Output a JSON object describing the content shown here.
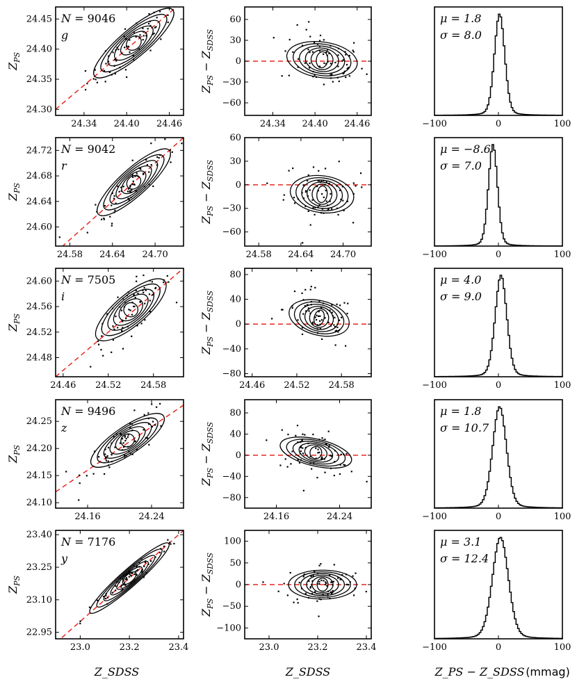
{
  "figure": {
    "x_label_left": "Z_SDSS",
    "x_label_mid": "Z_SDSS",
    "x_label_right": "Z_PS − Z_SDSS",
    "x_label_right_unit": "(mmag)",
    "y_label_left": "Z_PS",
    "y_label_mid": "Z_PS − Z_SDSS"
  },
  "chart_data": [
    {
      "band": "g",
      "N": "9046",
      "mu": "1.8",
      "sigma": "8.0",
      "left": {
        "type": "scatter",
        "xlim": [
          24.3,
          24.48
        ],
        "ylim": [
          24.29,
          24.47
        ],
        "xticks": [
          "24.34",
          "24.40",
          "24.46"
        ],
        "yticks": [
          "24.30",
          "24.35",
          "24.40",
          "24.45"
        ],
        "center": [
          24.41,
          24.41
        ],
        "slope": 1.0,
        "spread": 0.055,
        "width": 0.011
      },
      "mid": {
        "type": "scatter",
        "xlim": [
          24.3,
          24.48
        ],
        "ylim": [
          -78,
          78
        ],
        "xticks": [
          "24.34",
          "24.40",
          "24.46"
        ],
        "yticks": [
          "60",
          "30",
          "0",
          "−30",
          "−60"
        ],
        "center": [
          24.41,
          2
        ],
        "slope": -140,
        "spread": 0.05,
        "width": 13
      },
      "hist": {
        "type": "histogram",
        "xlim": [
          -100,
          100
        ],
        "xticks": [
          "−100",
          "0",
          "100"
        ],
        "mu": 1.8,
        "sigma": 8.0
      }
    },
    {
      "band": "r",
      "N": "9042",
      "mu": "−8.6",
      "sigma": "7.0",
      "left": {
        "type": "scatter",
        "xlim": [
          24.56,
          24.74
        ],
        "ylim": [
          24.57,
          24.74
        ],
        "xticks": [
          "24.58",
          "24.64",
          "24.70"
        ],
        "yticks": [
          "24.60",
          "24.64",
          "24.68",
          "24.72"
        ],
        "center": [
          24.67,
          24.67
        ],
        "slope": 1.0,
        "spread": 0.05,
        "width": 0.01
      },
      "mid": {
        "type": "scatter",
        "xlim": [
          24.56,
          24.74
        ],
        "ylim": [
          -78,
          60
        ],
        "xticks": [
          "24.58",
          "24.64",
          "24.70"
        ],
        "yticks": [
          "60",
          "30",
          "0",
          "−30",
          "−60"
        ],
        "center": [
          24.67,
          -12
        ],
        "slope": -120,
        "spread": 0.045,
        "width": 12
      },
      "hist": {
        "type": "histogram",
        "xlim": [
          -100,
          100
        ],
        "xticks": [
          "−100",
          "0",
          "100"
        ],
        "mu": -8.6,
        "sigma": 7.0
      }
    },
    {
      "band": "i",
      "N": "7505",
      "mu": "4.0",
      "sigma": "9.0",
      "left": {
        "type": "scatter",
        "xlim": [
          24.45,
          24.62
        ],
        "ylim": [
          24.45,
          24.62
        ],
        "xticks": [
          "24.46",
          "24.52",
          "24.58"
        ],
        "yticks": [
          "24.48",
          "24.52",
          "24.56",
          "24.60"
        ],
        "center": [
          24.55,
          24.555
        ],
        "slope": 1.0,
        "spread": 0.045,
        "width": 0.012
      },
      "mid": {
        "type": "scatter",
        "xlim": [
          24.45,
          24.62
        ],
        "ylim": [
          -85,
          90
        ],
        "xticks": [
          "24.46",
          "24.52",
          "24.58"
        ],
        "yticks": [
          "80",
          "40",
          "0",
          "−40",
          "−80"
        ],
        "center": [
          24.55,
          10
        ],
        "slope": -300,
        "spread": 0.04,
        "width": 14
      },
      "hist": {
        "type": "histogram",
        "xlim": [
          -100,
          100
        ],
        "xticks": [
          "−100",
          "0",
          "100"
        ],
        "mu": 4.0,
        "sigma": 9.0
      }
    },
    {
      "band": "z",
      "N": "9496",
      "mu": "1.8",
      "sigma": "10.7",
      "left": {
        "type": "scatter",
        "xlim": [
          24.12,
          24.28
        ],
        "ylim": [
          24.09,
          24.29
        ],
        "xticks": [
          "24.16",
          "24.24"
        ],
        "yticks": [
          "24.10",
          "24.15",
          "24.20",
          "24.25"
        ],
        "center": [
          24.21,
          24.215
        ],
        "slope": 1.0,
        "spread": 0.045,
        "width": 0.012
      },
      "mid": {
        "type": "scatter",
        "xlim": [
          24.12,
          24.28
        ],
        "ylim": [
          -100,
          105
        ],
        "xticks": [
          "24.16",
          "24.24"
        ],
        "yticks": [
          "80",
          "40",
          "0",
          "−40",
          "−80"
        ],
        "center": [
          24.21,
          5
        ],
        "slope": -350,
        "spread": 0.045,
        "width": 12
      },
      "hist": {
        "type": "histogram",
        "xlim": [
          -100,
          100
        ],
        "xticks": [
          "−100",
          "0",
          "100"
        ],
        "mu": 1.8,
        "sigma": 10.7
      }
    },
    {
      "band": "y",
      "N": "7176",
      "mu": "3.1",
      "sigma": "12.4",
      "left": {
        "type": "scatter",
        "xlim": [
          22.9,
          23.42
        ],
        "ylim": [
          22.92,
          23.42
        ],
        "xticks": [
          "23.0",
          "23.2",
          "23.4"
        ],
        "yticks": [
          "22.95",
          "23.10",
          "23.25",
          "23.40"
        ],
        "center": [
          23.2,
          23.2
        ],
        "slope": 1.0,
        "spread": 0.16,
        "width": 0.015
      },
      "mid": {
        "type": "scatter",
        "xlim": [
          22.9,
          23.42
        ],
        "ylim": [
          -125,
          125
        ],
        "xticks": [
          "23.0",
          "23.2",
          "23.4"
        ],
        "yticks": [
          "100",
          "50",
          "0",
          "−50",
          "−100"
        ],
        "center": [
          23.22,
          0
        ],
        "slope": 0,
        "spread": 0.14,
        "width": 16
      },
      "hist": {
        "type": "histogram",
        "xlim": [
          -100,
          100
        ],
        "xticks": [
          "−100",
          "0",
          "100"
        ],
        "mu": 3.1,
        "sigma": 12.4
      }
    }
  ]
}
